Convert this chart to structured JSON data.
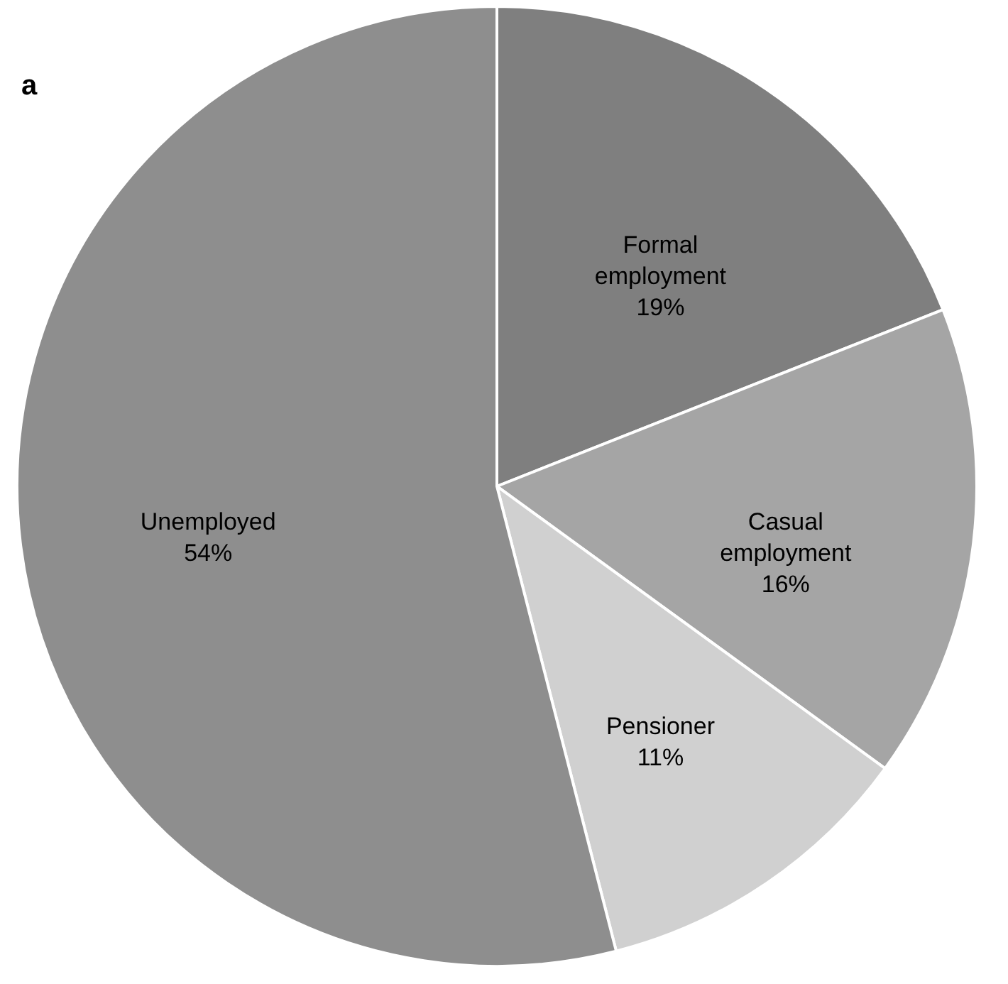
{
  "chart_data": {
    "type": "pie",
    "title": "a",
    "categories": [
      "Formal employment",
      "Casual employment",
      "Pensioner",
      "Unemployed"
    ],
    "values": [
      19,
      16,
      11,
      54
    ],
    "value_labels": [
      "19%",
      "16%",
      "11%",
      "54%"
    ],
    "colors": [
      "#7f7f7f",
      "#a5a5a5",
      "#d0d0d0",
      "#8e8e8e"
    ],
    "legend": false
  }
}
